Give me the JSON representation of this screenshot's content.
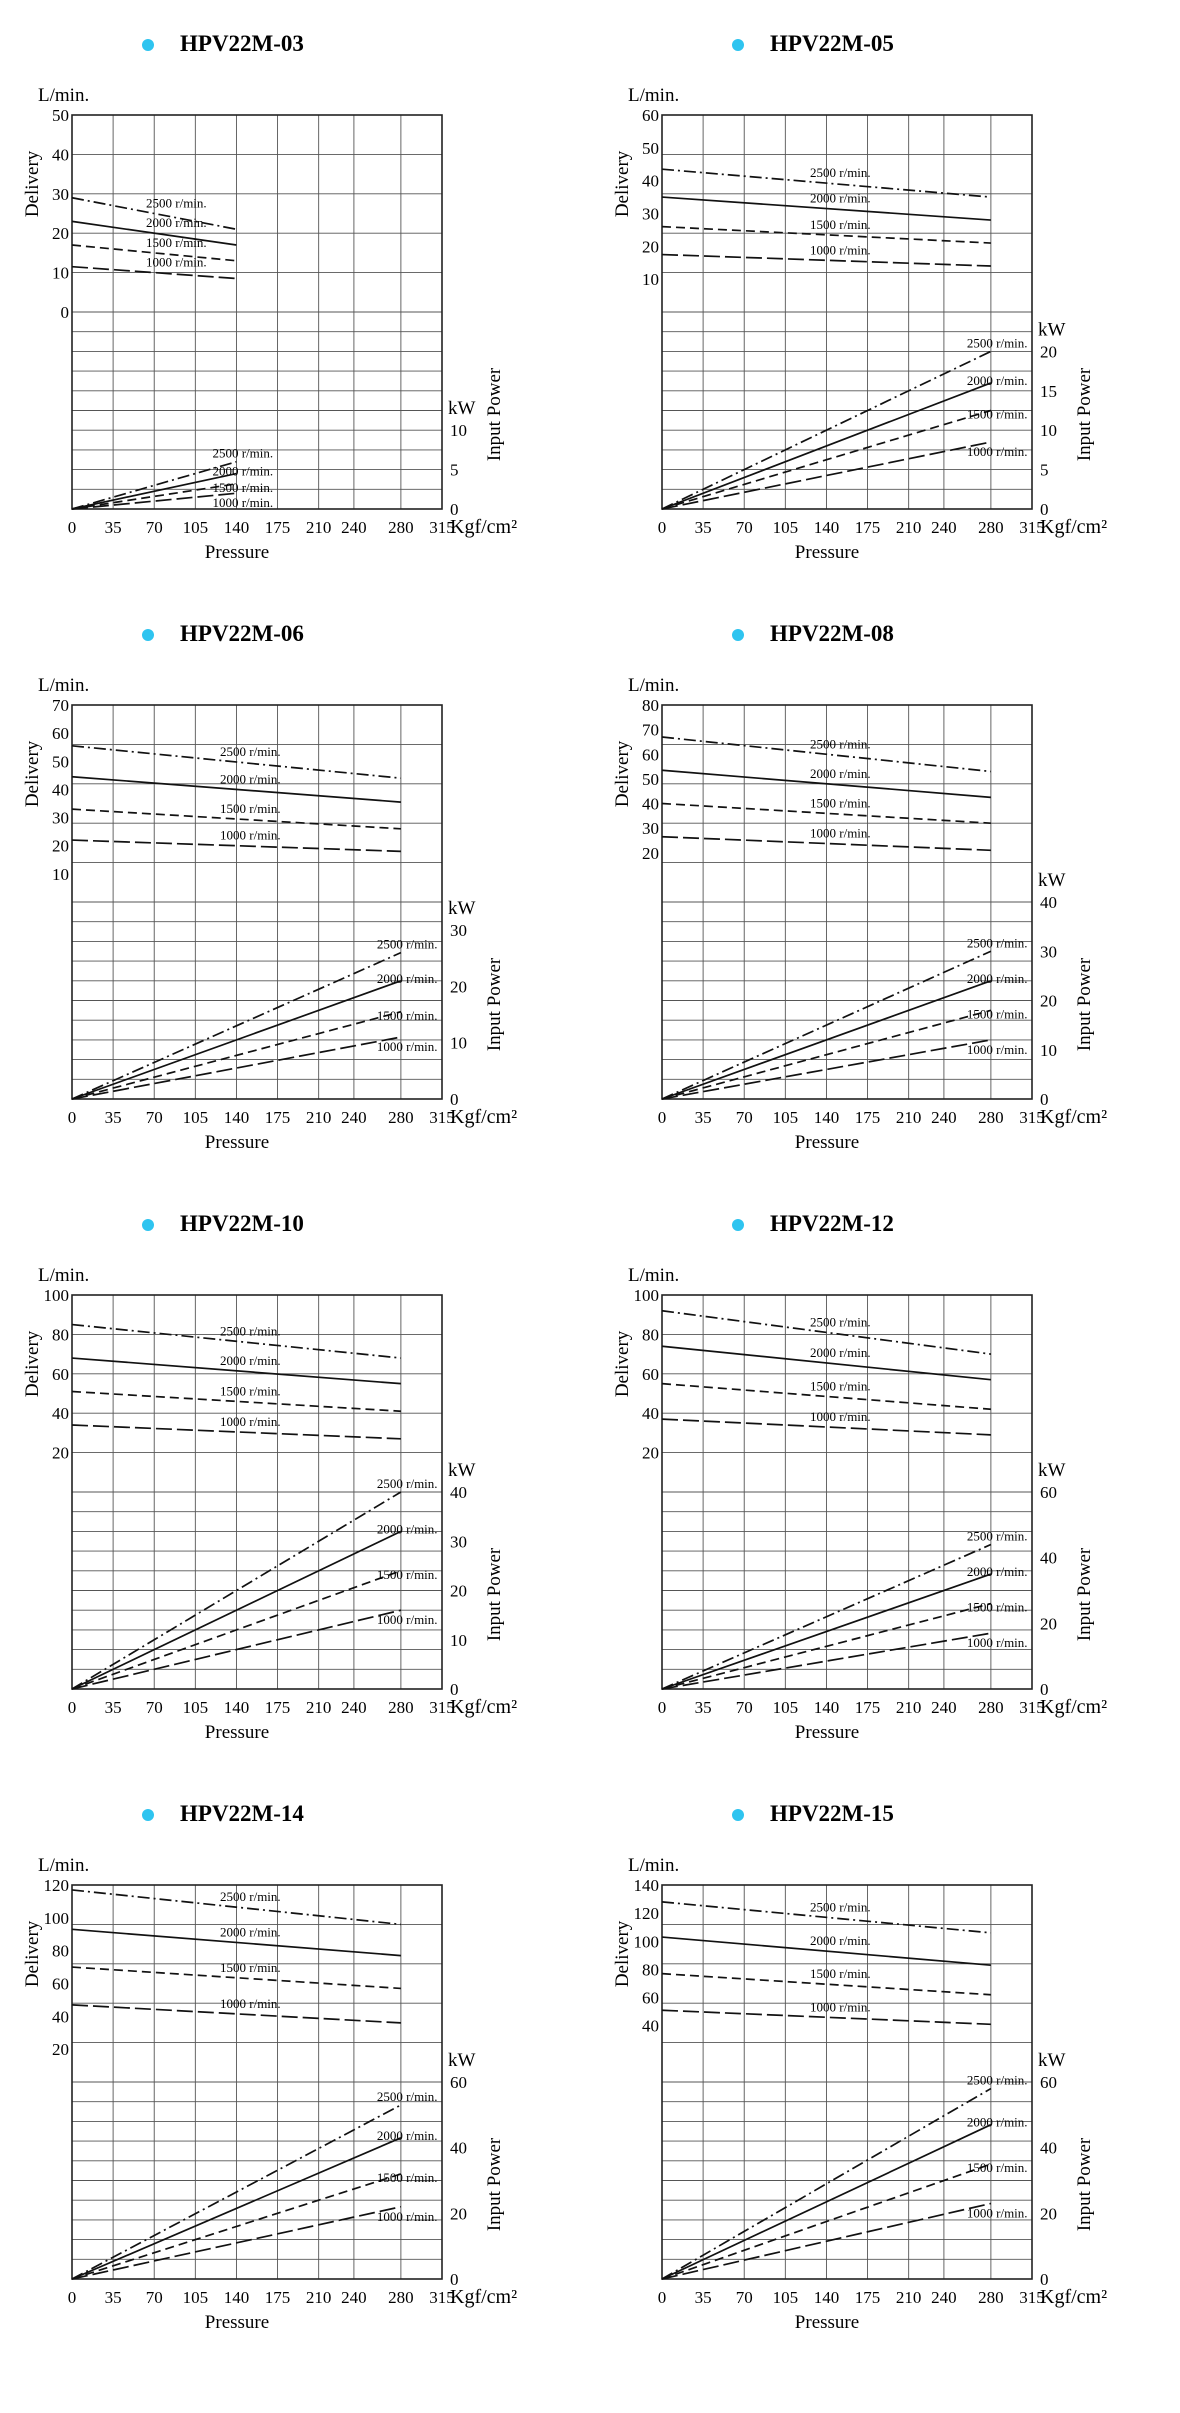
{
  "page": {
    "accent_color": "#2ec4f0"
  },
  "chart_data": [
    {
      "type": "line",
      "title": "HPV22M-03",
      "xlabel": "Pressure",
      "x_unit": "Kgf/cm²",
      "xlim": [
        0,
        315
      ],
      "xticks": [
        0,
        35,
        70,
        105,
        140,
        175,
        210,
        240,
        280,
        315
      ],
      "ylabel_top": "Delivery",
      "y_unit_top": "L/min.",
      "ylim_top": [
        0,
        50
      ],
      "yticks_top": [
        0,
        10,
        20,
        30,
        40,
        50
      ],
      "ylabel_bottom": "Input Power",
      "y_unit_bottom": "kW",
      "ylim_bottom": [
        0,
        25
      ],
      "yticks_bottom": [
        0,
        5,
        10
      ],
      "delivery_series": [
        {
          "name": "2500 r/min.",
          "style": "dashdot",
          "x": [
            0,
            140
          ],
          "values": [
            29,
            21
          ]
        },
        {
          "name": "2000 r/min.",
          "style": "solid",
          "x": [
            0,
            140
          ],
          "values": [
            23,
            17
          ]
        },
        {
          "name": "1500 r/min.",
          "style": "dashed",
          "x": [
            0,
            140
          ],
          "values": [
            17,
            13
          ]
        },
        {
          "name": "1000 r/min.",
          "style": "longdash",
          "x": [
            0,
            140
          ],
          "values": [
            11.5,
            8.5
          ]
        }
      ],
      "power_series": [
        {
          "name": "2500 r/min.",
          "style": "dashdot",
          "x": [
            0,
            140
          ],
          "values": [
            0,
            6
          ]
        },
        {
          "name": "2000 r/min.",
          "style": "solid",
          "x": [
            0,
            140
          ],
          "values": [
            0,
            4.5
          ]
        },
        {
          "name": "1500 r/min.",
          "style": "dashed",
          "x": [
            0,
            140
          ],
          "values": [
            0,
            3.2
          ]
        },
        {
          "name": "1000 r/min.",
          "style": "longdash",
          "x": [
            0,
            140
          ],
          "values": [
            0,
            2
          ]
        }
      ]
    },
    {
      "type": "line",
      "title": "HPV22M-05",
      "xlabel": "Pressure",
      "x_unit": "Kgf/cm²",
      "xlim": [
        0,
        315
      ],
      "xticks": [
        0,
        35,
        70,
        105,
        140,
        175,
        210,
        240,
        280,
        315
      ],
      "ylabel_top": "Delivery",
      "y_unit_top": "L/min.",
      "ylim_top": [
        0,
        60
      ],
      "yticks_top": [
        10,
        20,
        30,
        40,
        50,
        60
      ],
      "ylabel_bottom": "Input Power",
      "y_unit_bottom": "kW",
      "ylim_bottom": [
        0,
        25
      ],
      "yticks_bottom": [
        0,
        5,
        10,
        15,
        20
      ],
      "delivery_series": [
        {
          "name": "2500 r/min.",
          "style": "dashdot",
          "x": [
            0,
            280
          ],
          "values": [
            43.5,
            35
          ]
        },
        {
          "name": "2000 r/min.",
          "style": "solid",
          "x": [
            0,
            280
          ],
          "values": [
            35,
            28
          ]
        },
        {
          "name": "1500 r/min.",
          "style": "dashed",
          "x": [
            0,
            280
          ],
          "values": [
            26,
            21
          ]
        },
        {
          "name": "1000 r/min.",
          "style": "longdash",
          "x": [
            0,
            280
          ],
          "values": [
            17.5,
            14
          ]
        }
      ],
      "power_series": [
        {
          "name": "2500 r/min.",
          "style": "dashdot",
          "x": [
            0,
            280
          ],
          "values": [
            0,
            20
          ]
        },
        {
          "name": "2000 r/min.",
          "style": "solid",
          "x": [
            0,
            280
          ],
          "values": [
            0,
            16
          ]
        },
        {
          "name": "1500 r/min.",
          "style": "dashed",
          "x": [
            0,
            280
          ],
          "values": [
            0,
            12.5
          ]
        },
        {
          "name": "1000 r/min.",
          "style": "longdash",
          "x": [
            0,
            280
          ],
          "values": [
            0,
            8.5
          ]
        }
      ]
    },
    {
      "type": "line",
      "title": "HPV22M-06",
      "xlabel": "Pressure",
      "x_unit": "Kgf/cm²",
      "xlim": [
        0,
        315
      ],
      "xticks": [
        0,
        35,
        70,
        105,
        140,
        175,
        210,
        240,
        280,
        315
      ],
      "ylabel_top": "Delivery",
      "y_unit_top": "L/min.",
      "ylim_top": [
        0,
        70
      ],
      "yticks_top": [
        10,
        20,
        30,
        40,
        50,
        60,
        70
      ],
      "ylabel_bottom": "Input Power",
      "y_unit_bottom": "kW",
      "ylim_bottom": [
        0,
        35
      ],
      "yticks_bottom": [
        0,
        10,
        20,
        30
      ],
      "delivery_series": [
        {
          "name": "2500 r/min.",
          "style": "dashdot",
          "x": [
            0,
            280
          ],
          "values": [
            55.5,
            44
          ]
        },
        {
          "name": "2000 r/min.",
          "style": "solid",
          "x": [
            0,
            280
          ],
          "values": [
            44.5,
            35.5
          ]
        },
        {
          "name": "1500 r/min.",
          "style": "dashed",
          "x": [
            0,
            280
          ],
          "values": [
            33,
            26
          ]
        },
        {
          "name": "1000 r/min.",
          "style": "longdash",
          "x": [
            0,
            280
          ],
          "values": [
            22,
            18
          ]
        }
      ],
      "power_series": [
        {
          "name": "2500 r/min.",
          "style": "dashdot",
          "x": [
            0,
            280
          ],
          "values": [
            0,
            26
          ]
        },
        {
          "name": "2000 r/min.",
          "style": "solid",
          "x": [
            0,
            280
          ],
          "values": [
            0,
            21
          ]
        },
        {
          "name": "1500 r/min.",
          "style": "dashed",
          "x": [
            0,
            280
          ],
          "values": [
            0,
            15.5
          ]
        },
        {
          "name": "1000 r/min.",
          "style": "longdash",
          "x": [
            0,
            280
          ],
          "values": [
            0,
            11
          ]
        }
      ]
    },
    {
      "type": "line",
      "title": "HPV22M-08",
      "xlabel": "Pressure",
      "x_unit": "Kgf/cm²",
      "xlim": [
        0,
        315
      ],
      "xticks": [
        0,
        35,
        70,
        105,
        140,
        175,
        210,
        240,
        280,
        315
      ],
      "ylabel_top": "Delivery",
      "y_unit_top": "L/min.",
      "ylim_top": [
        0,
        80
      ],
      "yticks_top": [
        20,
        30,
        40,
        50,
        60,
        70,
        80
      ],
      "ylabel_bottom": "Input Power",
      "y_unit_bottom": "kW",
      "ylim_bottom": [
        0,
        40
      ],
      "yticks_bottom": [
        0,
        10,
        20,
        30,
        40
      ],
      "delivery_series": [
        {
          "name": "2500 r/min.",
          "style": "dashdot",
          "x": [
            0,
            280
          ],
          "values": [
            67,
            53
          ]
        },
        {
          "name": "2000 r/min.",
          "style": "solid",
          "x": [
            0,
            280
          ],
          "values": [
            53.5,
            42.5
          ]
        },
        {
          "name": "1500 r/min.",
          "style": "dashed",
          "x": [
            0,
            280
          ],
          "values": [
            40,
            32
          ]
        },
        {
          "name": "1000 r/min.",
          "style": "longdash",
          "x": [
            0,
            280
          ],
          "values": [
            26.5,
            21
          ]
        }
      ],
      "power_series": [
        {
          "name": "2500 r/min.",
          "style": "dashdot",
          "x": [
            0,
            280
          ],
          "values": [
            0,
            30
          ]
        },
        {
          "name": "2000 r/min.",
          "style": "solid",
          "x": [
            0,
            280
          ],
          "values": [
            0,
            24
          ]
        },
        {
          "name": "1500 r/min.",
          "style": "dashed",
          "x": [
            0,
            280
          ],
          "values": [
            0,
            18
          ]
        },
        {
          "name": "1000 r/min.",
          "style": "longdash",
          "x": [
            0,
            280
          ],
          "values": [
            0,
            12
          ]
        }
      ]
    },
    {
      "type": "line",
      "title": "HPV22M-10",
      "xlabel": "Pressure",
      "x_unit": "Kgf/cm²",
      "xlim": [
        0,
        315
      ],
      "xticks": [
        0,
        35,
        70,
        105,
        140,
        175,
        210,
        240,
        280,
        315
      ],
      "ylabel_top": "Delivery",
      "y_unit_top": "L/min.",
      "ylim_top": [
        0,
        100
      ],
      "yticks_top": [
        20,
        40,
        60,
        80,
        100
      ],
      "ylabel_bottom": "Input Power",
      "y_unit_bottom": "kW",
      "ylim_bottom": [
        0,
        40
      ],
      "yticks_bottom": [
        0,
        10,
        20,
        30,
        40
      ],
      "delivery_series": [
        {
          "name": "2500 r/min.",
          "style": "dashdot",
          "x": [
            0,
            280
          ],
          "values": [
            85,
            68
          ]
        },
        {
          "name": "2000 r/min.",
          "style": "solid",
          "x": [
            0,
            280
          ],
          "values": [
            68,
            55
          ]
        },
        {
          "name": "1500 r/min.",
          "style": "dashed",
          "x": [
            0,
            280
          ],
          "values": [
            51,
            41
          ]
        },
        {
          "name": "1000 r/min.",
          "style": "longdash",
          "x": [
            0,
            280
          ],
          "values": [
            34,
            27
          ]
        }
      ],
      "power_series": [
        {
          "name": "2500 r/min.",
          "style": "dashdot",
          "x": [
            0,
            280
          ],
          "values": [
            0,
            40
          ]
        },
        {
          "name": "2000 r/min.",
          "style": "solid",
          "x": [
            0,
            280
          ],
          "values": [
            0,
            32
          ]
        },
        {
          "name": "1500 r/min.",
          "style": "dashed",
          "x": [
            0,
            280
          ],
          "values": [
            0,
            24
          ]
        },
        {
          "name": "1000 r/min.",
          "style": "longdash",
          "x": [
            0,
            280
          ],
          "values": [
            0,
            16
          ]
        }
      ]
    },
    {
      "type": "line",
      "title": "HPV22M-12",
      "xlabel": "Pressure",
      "x_unit": "Kgf/cm²",
      "xlim": [
        0,
        315
      ],
      "xticks": [
        0,
        35,
        70,
        105,
        140,
        175,
        210,
        240,
        280,
        315
      ],
      "ylabel_top": "Delivery",
      "y_unit_top": "L/min.",
      "ylim_top": [
        0,
        100
      ],
      "yticks_top": [
        20,
        40,
        60,
        80,
        100
      ],
      "ylabel_bottom": "Input Power",
      "y_unit_bottom": "kW",
      "ylim_bottom": [
        0,
        60
      ],
      "yticks_bottom": [
        0,
        20,
        40,
        60
      ],
      "delivery_series": [
        {
          "name": "2500 r/min.",
          "style": "dashdot",
          "x": [
            0,
            280
          ],
          "values": [
            92,
            70
          ]
        },
        {
          "name": "2000 r/min.",
          "style": "solid",
          "x": [
            0,
            280
          ],
          "values": [
            74,
            57
          ]
        },
        {
          "name": "1500 r/min.",
          "style": "dashed",
          "x": [
            0,
            280
          ],
          "values": [
            55,
            42
          ]
        },
        {
          "name": "1000 r/min.",
          "style": "longdash",
          "x": [
            0,
            280
          ],
          "values": [
            37,
            29
          ]
        }
      ],
      "power_series": [
        {
          "name": "2500 r/min.",
          "style": "dashdot",
          "x": [
            0,
            280
          ],
          "values": [
            0,
            44
          ]
        },
        {
          "name": "2000 r/min.",
          "style": "solid",
          "x": [
            0,
            280
          ],
          "values": [
            0,
            35
          ]
        },
        {
          "name": "1500 r/min.",
          "style": "dashed",
          "x": [
            0,
            280
          ],
          "values": [
            0,
            26
          ]
        },
        {
          "name": "1000 r/min.",
          "style": "longdash",
          "x": [
            0,
            280
          ],
          "values": [
            0,
            17
          ]
        }
      ]
    },
    {
      "type": "line",
      "title": "HPV22M-14",
      "xlabel": "Pressure",
      "x_unit": "Kgf/cm²",
      "xlim": [
        0,
        315
      ],
      "xticks": [
        0,
        35,
        70,
        105,
        140,
        175,
        210,
        240,
        280,
        315
      ],
      "ylabel_top": "Delivery",
      "y_unit_top": "L/min.",
      "ylim_top": [
        0,
        120
      ],
      "yticks_top": [
        20,
        40,
        60,
        80,
        100,
        120
      ],
      "ylabel_bottom": "Input Power",
      "y_unit_bottom": "kW",
      "ylim_bottom": [
        0,
        60
      ],
      "yticks_bottom": [
        0,
        20,
        40,
        60
      ],
      "delivery_series": [
        {
          "name": "2500 r/min.",
          "style": "dashdot",
          "x": [
            0,
            280
          ],
          "values": [
            117,
            96
          ]
        },
        {
          "name": "2000 r/min.",
          "style": "solid",
          "x": [
            0,
            280
          ],
          "values": [
            93,
            77
          ]
        },
        {
          "name": "1500 r/min.",
          "style": "dashed",
          "x": [
            0,
            280
          ],
          "values": [
            70,
            57
          ]
        },
        {
          "name": "1000 r/min.",
          "style": "longdash",
          "x": [
            0,
            280
          ],
          "values": [
            47,
            36
          ]
        }
      ],
      "power_series": [
        {
          "name": "2500 r/min.",
          "style": "dashdot",
          "x": [
            0,
            280
          ],
          "values": [
            0,
            53
          ]
        },
        {
          "name": "2000 r/min.",
          "style": "solid",
          "x": [
            0,
            280
          ],
          "values": [
            0,
            43
          ]
        },
        {
          "name": "1500 r/min.",
          "style": "dashed",
          "x": [
            0,
            280
          ],
          "values": [
            0,
            32
          ]
        },
        {
          "name": "1000 r/min.",
          "style": "longdash",
          "x": [
            0,
            280
          ],
          "values": [
            0,
            22
          ]
        }
      ]
    },
    {
      "type": "line",
      "title": "HPV22M-15",
      "xlabel": "Pressure",
      "x_unit": "Kgf/cm²",
      "xlim": [
        0,
        315
      ],
      "xticks": [
        0,
        35,
        70,
        105,
        140,
        175,
        210,
        240,
        280,
        315
      ],
      "ylabel_top": "Delivery",
      "y_unit_top": "L/min.",
      "ylim_top": [
        0,
        140
      ],
      "yticks_top": [
        40,
        60,
        80,
        100,
        120,
        140
      ],
      "ylabel_bottom": "Input Power",
      "y_unit_bottom": "kW",
      "ylim_bottom": [
        0,
        60
      ],
      "yticks_bottom": [
        0,
        20,
        40,
        60
      ],
      "delivery_series": [
        {
          "name": "2500 r/min.",
          "style": "dashdot",
          "x": [
            0,
            280
          ],
          "values": [
            128,
            106
          ]
        },
        {
          "name": "2000 r/min.",
          "style": "solid",
          "x": [
            0,
            280
          ],
          "values": [
            103,
            83
          ]
        },
        {
          "name": "1500 r/min.",
          "style": "dashed",
          "x": [
            0,
            280
          ],
          "values": [
            77,
            62
          ]
        },
        {
          "name": "1000 r/min.",
          "style": "longdash",
          "x": [
            0,
            280
          ],
          "values": [
            51,
            41
          ]
        }
      ],
      "power_series": [
        {
          "name": "2500 r/min.",
          "style": "dashdot",
          "x": [
            0,
            280
          ],
          "values": [
            0,
            58
          ]
        },
        {
          "name": "2000 r/min.",
          "style": "solid",
          "x": [
            0,
            280
          ],
          "values": [
            0,
            47
          ]
        },
        {
          "name": "1500 r/min.",
          "style": "dashed",
          "x": [
            0,
            280
          ],
          "values": [
            0,
            35
          ]
        },
        {
          "name": "1000 r/min.",
          "style": "longdash",
          "x": [
            0,
            280
          ],
          "values": [
            0,
            23
          ]
        }
      ]
    }
  ]
}
